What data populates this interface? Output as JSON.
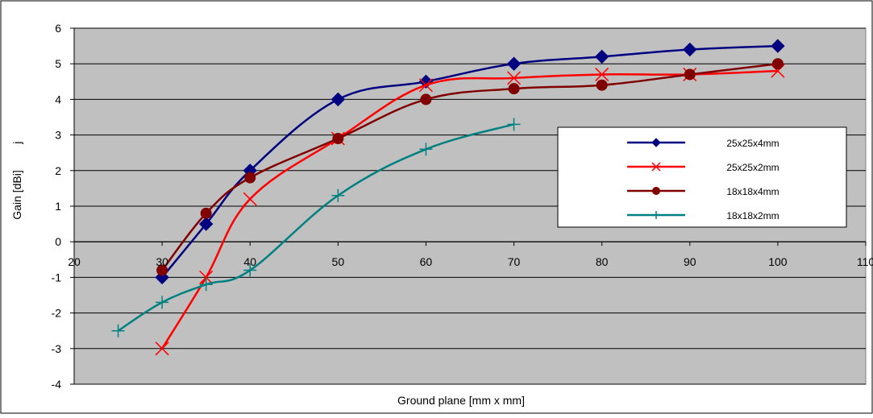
{
  "chart_data": {
    "type": "line",
    "title": "",
    "xlabel": "Ground plane [mm x mm]",
    "ylabel": "Gain [dBi]",
    "ylabel_suffix": "j",
    "xlim": [
      20,
      110
    ],
    "ylim": [
      -4,
      6
    ],
    "x_ticks": [
      20,
      30,
      40,
      50,
      60,
      70,
      80,
      90,
      100,
      110
    ],
    "y_ticks": [
      -4,
      -3,
      -2,
      -1,
      0,
      1,
      2,
      3,
      4,
      5,
      6
    ],
    "grid": "horizontal",
    "plot_background": "#c0c0c0",
    "legend_position": "right",
    "series": [
      {
        "name": "25x25x4mm",
        "color": "#000080",
        "marker": "diamond",
        "x": [
          30,
          35,
          40,
          50,
          60,
          70,
          80,
          90,
          100
        ],
        "y": [
          -1.0,
          0.5,
          2.0,
          4.0,
          4.5,
          5.0,
          5.2,
          5.4,
          5.5
        ]
      },
      {
        "name": "25x25x2mm",
        "color": "#ff0000",
        "marker": "x",
        "x": [
          30,
          35,
          40,
          50,
          60,
          70,
          80,
          90,
          100
        ],
        "y": [
          -3.0,
          -1.0,
          1.2,
          2.9,
          4.4,
          4.6,
          4.7,
          4.7,
          4.8
        ]
      },
      {
        "name": "18x18x4mm",
        "color": "#800000",
        "marker": "circle",
        "x": [
          30,
          35,
          40,
          50,
          60,
          70,
          80,
          90,
          100
        ],
        "y": [
          -0.8,
          0.8,
          1.8,
          2.9,
          4.0,
          4.3,
          4.4,
          4.7,
          5.0
        ]
      },
      {
        "name": "18x18x2mm",
        "color": "#008080",
        "marker": "plus",
        "x": [
          25,
          30,
          35,
          40,
          50,
          60,
          70
        ],
        "y": [
          -2.5,
          -1.7,
          -1.2,
          -0.8,
          1.3,
          2.6,
          3.3
        ]
      }
    ]
  }
}
